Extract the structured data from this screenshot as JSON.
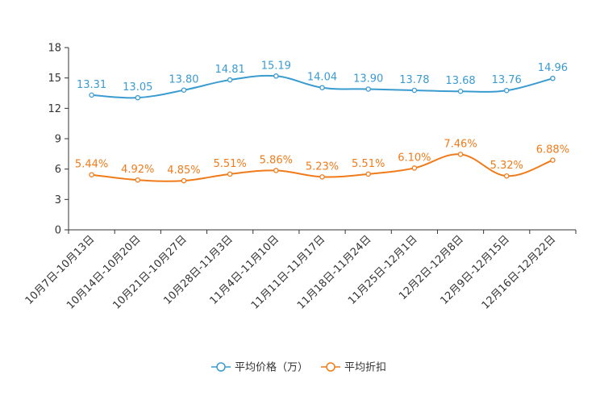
{
  "chart_data": {
    "type": "line",
    "title": "",
    "xlabel": "",
    "ylabel": "",
    "ylim": [
      0,
      18
    ],
    "yticks": [
      0,
      3,
      6,
      9,
      12,
      15,
      18
    ],
    "categories": [
      "10月7日-10月13日",
      "10月14日-10月20日",
      "10月21日-10月27日",
      "10月28日-11月3日",
      "11月4日-11月10日",
      "11月11日-11月17日",
      "11月18日-11月24日",
      "11月25日-12月1日",
      "12月2日-12月8日",
      "12月9日-12月15日",
      "12月16日-12月22日"
    ],
    "series": [
      {
        "name": "平均价格（万）",
        "color": "#3a9bd1",
        "values": [
          13.31,
          13.05,
          13.8,
          14.81,
          15.19,
          14.04,
          13.9,
          13.78,
          13.68,
          13.76,
          14.96
        ],
        "labels": [
          "13.31",
          "13.05",
          "13.80",
          "14.81",
          "15.19",
          "14.04",
          "13.90",
          "13.78",
          "13.68",
          "13.76",
          "14.96"
        ]
      },
      {
        "name": "平均折扣",
        "color": "#f07b1a",
        "values": [
          5.44,
          4.92,
          4.85,
          5.51,
          5.86,
          5.23,
          5.51,
          6.1,
          7.46,
          5.32,
          6.88
        ],
        "labels": [
          "5.44%",
          "4.92%",
          "4.85%",
          "5.51%",
          "5.86%",
          "5.23%",
          "5.51%",
          "6.10%",
          "7.46%",
          "5.32%",
          "6.88%"
        ]
      }
    ],
    "legend_position": "bottom-center",
    "grid": false
  }
}
